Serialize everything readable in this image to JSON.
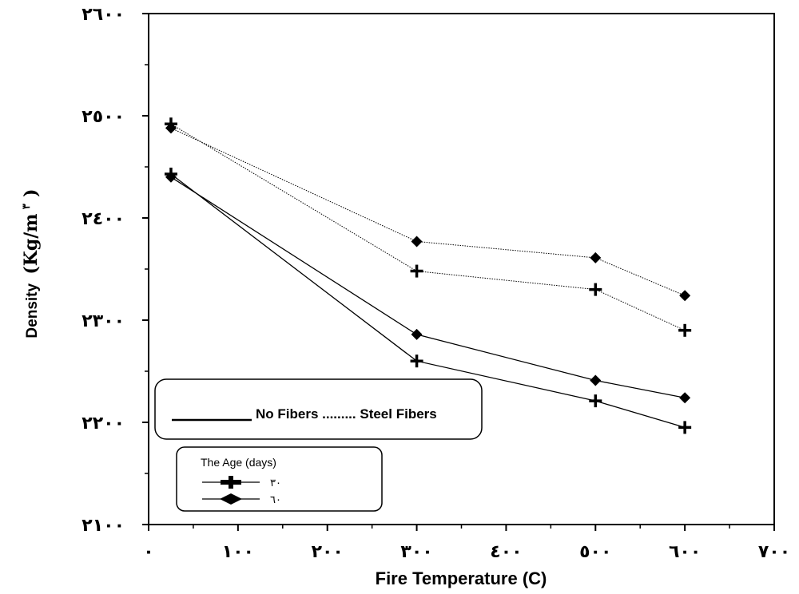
{
  "chart_data": {
    "type": "line",
    "xlabel": "Fire Temperature (C)",
    "ylabel_main": "Density",
    "ylabel_unit": "(Kg/m",
    "ylabel_sup": "٣",
    "ylabel_close": ")",
    "xlim": [
      0,
      700
    ],
    "ylim": [
      2100,
      2600
    ],
    "x_ticks": [
      {
        "value": 0,
        "label": "٠"
      },
      {
        "value": 100,
        "label": "١٠٠"
      },
      {
        "value": 200,
        "label": "٢٠٠"
      },
      {
        "value": 300,
        "label": "٣٠٠"
      },
      {
        "value": 400,
        "label": "٤٠٠"
      },
      {
        "value": 500,
        "label": "٥٠٠"
      },
      {
        "value": 600,
        "label": "٦٠٠"
      },
      {
        "value": 700,
        "label": "٧٠٠"
      }
    ],
    "y_ticks": [
      {
        "value": 2100,
        "label": "٢١٠٠"
      },
      {
        "value": 2200,
        "label": "٢٢٠٠"
      },
      {
        "value": 2300,
        "label": "٢٣٠٠"
      },
      {
        "value": 2400,
        "label": "٢٤٠٠"
      },
      {
        "value": 2500,
        "label": "٢٥٠٠"
      },
      {
        "value": 2600,
        "label": "٢٦٠٠"
      }
    ],
    "series": [
      {
        "group": "no-fibers",
        "age": "30",
        "marker": "plus",
        "line": "solid",
        "x": [
          25,
          300,
          500,
          600
        ],
        "y": [
          2443,
          2260,
          2221,
          2195
        ]
      },
      {
        "group": "no-fibers",
        "age": "60",
        "marker": "diamond",
        "line": "solid",
        "x": [
          25,
          300,
          500,
          600
        ],
        "y": [
          2440,
          2286,
          2241,
          2224
        ]
      },
      {
        "group": "steel-fibers",
        "age": "30",
        "marker": "plus",
        "line": "dotted",
        "x": [
          25,
          300,
          500,
          600
        ],
        "y": [
          2492,
          2348,
          2330,
          2290
        ]
      },
      {
        "group": "steel-fibers",
        "age": "60",
        "marker": "diamond",
        "line": "dotted",
        "x": [
          25,
          300,
          500,
          600
        ],
        "y": [
          2488,
          2377,
          2361,
          2324
        ]
      }
    ],
    "legend_fibers": {
      "text": "No Fibers ......... Steel Fibers"
    },
    "legend_age": {
      "title": "The Age (days)",
      "items": [
        {
          "label": "٣٠",
          "marker": "plus"
        },
        {
          "label": "٦٠",
          "marker": "diamond"
        }
      ]
    },
    "grid": false
  }
}
